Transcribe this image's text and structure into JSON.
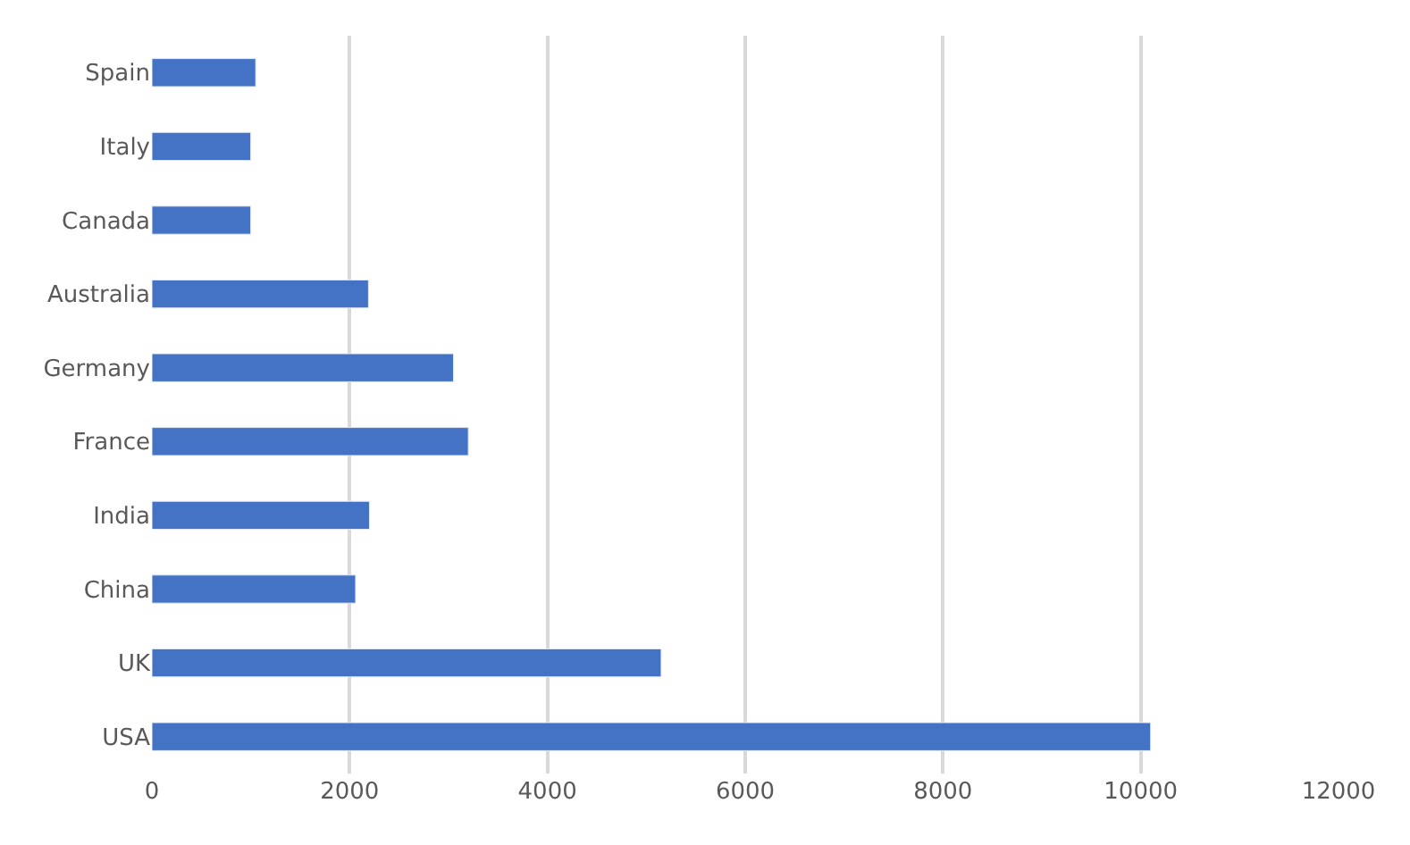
{
  "chart_data": {
    "type": "bar",
    "orientation": "horizontal",
    "categories": [
      "Spain",
      "Italy",
      "Canada",
      "Australia",
      "Germany",
      "France",
      "India",
      "China",
      "UK",
      "USA"
    ],
    "values": [
      1050,
      1000,
      1000,
      2190,
      3050,
      3200,
      2200,
      2060,
      5150,
      10100
    ],
    "color": "#4472c4",
    "xlim": [
      0,
      12000
    ],
    "xticks": [
      0,
      2000,
      4000,
      6000,
      8000,
      10000,
      12000
    ],
    "grid": "x",
    "legend": false
  }
}
